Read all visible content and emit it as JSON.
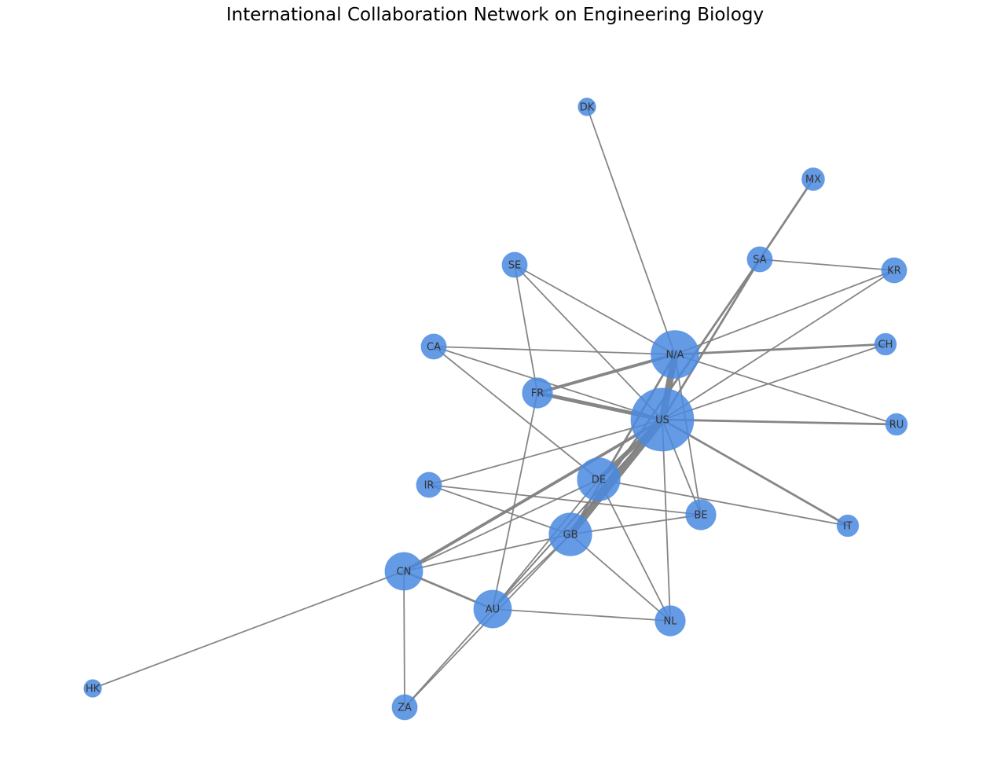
{
  "title": "International Collaboration Network on Engineering Biology",
  "colors": {
    "node": "#4a8ae0",
    "edge": "#808080",
    "label": "#333333"
  },
  "nodes": [
    {
      "id": "US",
      "label": "US",
      "size": 10
    },
    {
      "id": "N/A",
      "label": "N/A",
      "size": 7
    },
    {
      "id": "GB",
      "label": "GB",
      "size": 6
    },
    {
      "id": "DE",
      "label": "DE",
      "size": 6
    },
    {
      "id": "CN",
      "label": "CN",
      "size": 5
    },
    {
      "id": "AU",
      "label": "AU",
      "size": 5
    },
    {
      "id": "FR",
      "label": "FR",
      "size": 3.5
    },
    {
      "id": "NL",
      "label": "NL",
      "size": 3.5
    },
    {
      "id": "BE",
      "label": "BE",
      "size": 3.5
    },
    {
      "id": "SE",
      "label": "SE",
      "size": 2.5
    },
    {
      "id": "CA",
      "label": "CA",
      "size": 2.5
    },
    {
      "id": "SA",
      "label": "SA",
      "size": 2.5
    },
    {
      "id": "KR",
      "label": "KR",
      "size": 2.5
    },
    {
      "id": "IR",
      "label": "IR",
      "size": 2.5
    },
    {
      "id": "ZA",
      "label": "ZA",
      "size": 2.5
    },
    {
      "id": "MX",
      "label": "MX",
      "size": 2
    },
    {
      "id": "CH",
      "label": "CH",
      "size": 1.8
    },
    {
      "id": "RU",
      "label": "RU",
      "size": 1.8
    },
    {
      "id": "IT",
      "label": "IT",
      "size": 1.8
    },
    {
      "id": "DK",
      "label": "DK",
      "size": 1
    },
    {
      "id": "HK",
      "label": "HK",
      "size": 1
    }
  ],
  "edges": [
    {
      "source": "US",
      "target": "N/A",
      "weight": 8
    },
    {
      "source": "US",
      "target": "GB",
      "weight": 8
    },
    {
      "source": "US",
      "target": "DE",
      "weight": 5
    },
    {
      "source": "US",
      "target": "FR",
      "weight": 4
    },
    {
      "source": "US",
      "target": "CN",
      "weight": 3
    },
    {
      "source": "US",
      "target": "AU",
      "weight": 1
    },
    {
      "source": "US",
      "target": "NL",
      "weight": 1
    },
    {
      "source": "US",
      "target": "BE",
      "weight": 1
    },
    {
      "source": "US",
      "target": "RU",
      "weight": 2
    },
    {
      "source": "US",
      "target": "IT",
      "weight": 2
    },
    {
      "source": "US",
      "target": "CH",
      "weight": 1
    },
    {
      "source": "US",
      "target": "KR",
      "weight": 1
    },
    {
      "source": "US",
      "target": "SA",
      "weight": 2
    },
    {
      "source": "US",
      "target": "SE",
      "weight": 1
    },
    {
      "source": "US",
      "target": "CA",
      "weight": 1
    },
    {
      "source": "US",
      "target": "IR",
      "weight": 1
    },
    {
      "source": "US",
      "target": "ZA",
      "weight": 1
    },
    {
      "source": "N/A",
      "target": "FR",
      "weight": 3
    },
    {
      "source": "N/A",
      "target": "CH",
      "weight": 2
    },
    {
      "source": "N/A",
      "target": "GB",
      "weight": 2
    },
    {
      "source": "N/A",
      "target": "DK",
      "weight": 1
    },
    {
      "source": "N/A",
      "target": "CA",
      "weight": 1
    },
    {
      "source": "N/A",
      "target": "SE",
      "weight": 1
    },
    {
      "source": "N/A",
      "target": "RU",
      "weight": 1
    },
    {
      "source": "N/A",
      "target": "KR",
      "weight": 1
    },
    {
      "source": "N/A",
      "target": "BE",
      "weight": 1
    },
    {
      "source": "SA",
      "target": "MX",
      "weight": 2
    },
    {
      "source": "SA",
      "target": "KR",
      "weight": 1
    },
    {
      "source": "SA",
      "target": "GB",
      "weight": 2
    },
    {
      "source": "CN",
      "target": "AU",
      "weight": 2
    },
    {
      "source": "CN",
      "target": "GB",
      "weight": 1
    },
    {
      "source": "CN",
      "target": "DE",
      "weight": 1
    },
    {
      "source": "CN",
      "target": "HK",
      "weight": 1
    },
    {
      "source": "CN",
      "target": "ZA",
      "weight": 1
    },
    {
      "source": "AU",
      "target": "GB",
      "weight": 1
    },
    {
      "source": "AU",
      "target": "NL",
      "weight": 1
    },
    {
      "source": "AU",
      "target": "FR",
      "weight": 1
    },
    {
      "source": "AU",
      "target": "DE",
      "weight": 1
    },
    {
      "source": "GB",
      "target": "NL",
      "weight": 1
    },
    {
      "source": "GB",
      "target": "BE",
      "weight": 1
    },
    {
      "source": "GB",
      "target": "IR",
      "weight": 1
    },
    {
      "source": "GB",
      "target": "ZA",
      "weight": 1
    },
    {
      "source": "DE",
      "target": "CA",
      "weight": 1
    },
    {
      "source": "DE",
      "target": "IT",
      "weight": 1
    },
    {
      "source": "DE",
      "target": "NL",
      "weight": 1
    },
    {
      "source": "FR",
      "target": "SE",
      "weight": 1
    },
    {
      "source": "IR",
      "target": "BE",
      "weight": 1
    }
  ]
}
